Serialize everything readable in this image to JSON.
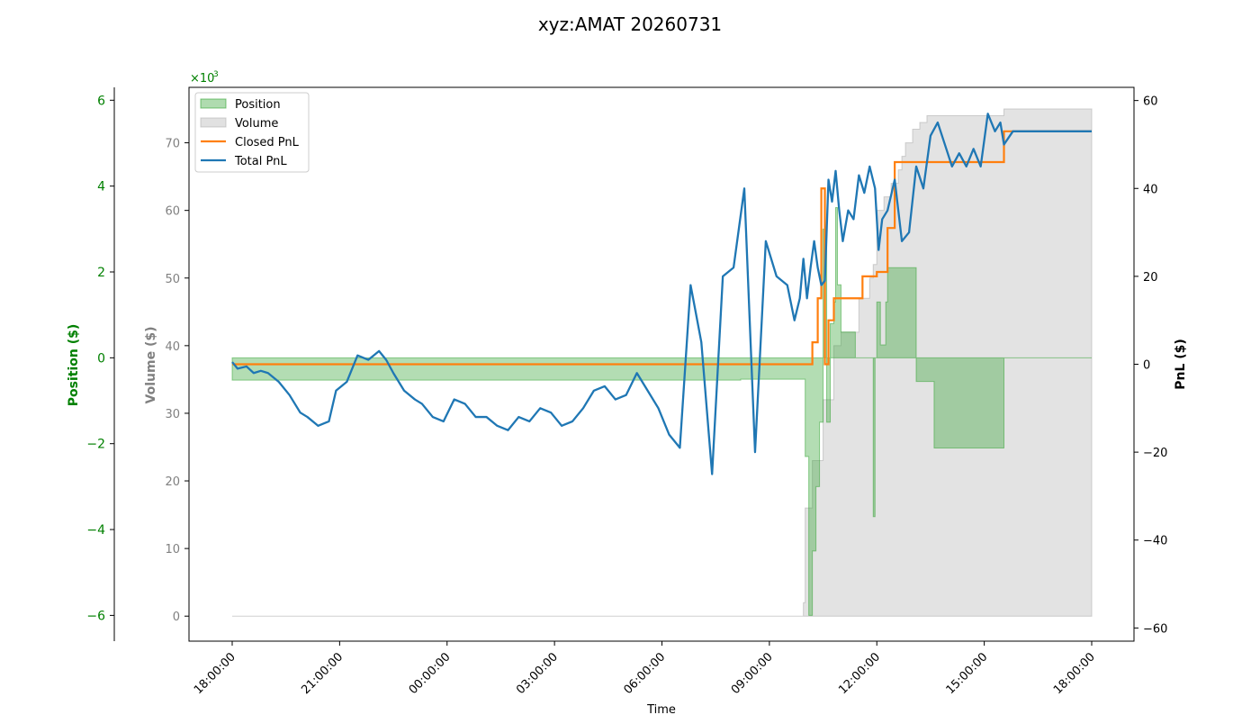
{
  "chart_data": {
    "type": "line",
    "title": "xyz:AMAT 20260731",
    "xlabel": "Time",
    "x_ticks": [
      "18:00:00",
      "21:00:00",
      "00:00:00",
      "03:00:00",
      "06:00:00",
      "09:00:00",
      "12:00:00",
      "15:00:00",
      "18:00:00"
    ],
    "axes": {
      "position": {
        "label": "Position ($)",
        "ticks": [
          "6",
          "4",
          "2",
          "0",
          "−2",
          "−4",
          "−6"
        ],
        "tick_values": [
          6,
          4,
          2,
          0,
          -2,
          -4,
          -6
        ],
        "multiplier": "×10",
        "multiplier_exp": "3",
        "ylim": [
          -6.6,
          6.3
        ],
        "color": "#008000"
      },
      "volume": {
        "label": "Volume ($)",
        "ticks": [
          "70",
          "60",
          "50",
          "40",
          "30",
          "20",
          "10",
          "0"
        ],
        "tick_values": [
          70,
          60,
          50,
          40,
          30,
          20,
          10,
          0
        ],
        "ylim": [
          -3.7,
          78.2
        ],
        "color": "#808080"
      },
      "pnl": {
        "label": "PnL ($)",
        "ticks": [
          "60",
          "40",
          "20",
          "0",
          "−20",
          "−40",
          "−60"
        ],
        "tick_values": [
          60,
          40,
          20,
          0,
          -20,
          -40,
          -60
        ],
        "ylim": [
          -63,
          63
        ],
        "color": "#000000"
      }
    },
    "legend": {
      "placement": "upper-left",
      "entries": [
        {
          "label": "Position",
          "kind": "patch",
          "color": "#2ca02c"
        },
        {
          "label": "Volume",
          "kind": "patch",
          "color": "#b0b0b0"
        },
        {
          "label": "Closed PnL",
          "kind": "line",
          "color": "#ff7f0e"
        },
        {
          "label": "Total PnL",
          "kind": "line",
          "color": "#1f77b4"
        }
      ]
    },
    "series": [
      {
        "name": "Position",
        "axis": "position",
        "kind": "area",
        "color": "#2ca02c",
        "x": [
          0,
          14.0,
          14.2,
          15.9,
          16.0,
          16.1,
          16.2,
          16.3,
          16.4,
          16.5,
          16.6,
          16.7,
          16.8,
          16.85,
          16.9,
          17.0,
          17.2,
          17.4,
          17.8,
          17.9,
          17.95,
          18.0,
          18.1,
          18.25,
          18.3,
          18.5,
          18.6,
          18.7,
          18.8,
          18.9,
          19.0,
          19.1,
          19.3,
          19.5,
          19.6,
          20.5,
          20.6,
          21.5,
          21.55,
          24
        ],
        "values": [
          -0.52,
          -0.52,
          -0.5,
          -0.5,
          -2.3,
          -6.0,
          -4.5,
          -3.0,
          -1.5,
          3.0,
          -1.5,
          0.8,
          1.3,
          3.5,
          1.7,
          0.6,
          0.6,
          0,
          0,
          -3.7,
          0,
          1.3,
          0.3,
          1.3,
          2.1,
          2.1,
          2.1,
          2.1,
          2.1,
          2.1,
          2.1,
          -0.55,
          -0.55,
          -0.55,
          -2.1,
          -2.1,
          -2.1,
          -2.1,
          0,
          0
        ]
      },
      {
        "name": "Volume",
        "axis": "volume",
        "kind": "area",
        "color": "#b0b0b0",
        "x": [
          0,
          15.9,
          15.95,
          16.0,
          16.2,
          16.5,
          16.8,
          17.0,
          17.5,
          17.8,
          17.9,
          18.0,
          18.2,
          18.4,
          18.6,
          18.7,
          18.8,
          19.0,
          19.2,
          19.4,
          20.0,
          21.0,
          21.55,
          22.0,
          23.0,
          24
        ],
        "values": [
          0,
          0,
          2,
          16,
          23,
          32,
          40,
          42,
          47,
          50,
          52,
          60,
          62,
          64,
          66,
          68,
          70,
          72,
          73,
          74,
          74,
          74,
          75,
          75,
          75,
          75
        ]
      },
      {
        "name": "Closed PnL",
        "axis": "pnl",
        "kind": "step",
        "color": "#ff7f0e",
        "x": [
          0,
          16.1,
          16.2,
          16.35,
          16.45,
          16.55,
          16.65,
          16.8,
          17.0,
          17.2,
          17.4,
          17.6,
          17.8,
          18.0,
          18.3,
          18.5,
          18.8,
          19.0,
          19.5,
          20.0,
          21.0,
          21.5,
          21.55,
          22.0,
          23.0,
          24.0
        ],
        "values": [
          0,
          0,
          5,
          15,
          40,
          0,
          10,
          15,
          15,
          15,
          15,
          20,
          20,
          21,
          31,
          46,
          46,
          46,
          46,
          46,
          46,
          46,
          53,
          53,
          53,
          53
        ]
      },
      {
        "name": "Total PnL",
        "axis": "pnl",
        "kind": "line",
        "color": "#1f77b4",
        "x": [
          0,
          0.15,
          0.4,
          0.6,
          0.8,
          1.0,
          1.3,
          1.6,
          1.9,
          2.1,
          2.4,
          2.7,
          2.9,
          3.2,
          3.5,
          3.8,
          4.1,
          4.3,
          4.5,
          4.8,
          5.1,
          5.3,
          5.6,
          5.9,
          6.2,
          6.5,
          6.8,
          7.1,
          7.4,
          7.7,
          8.0,
          8.3,
          8.6,
          8.9,
          9.2,
          9.5,
          9.8,
          10.1,
          10.4,
          10.7,
          11.0,
          11.3,
          11.6,
          11.9,
          12.2,
          12.5,
          12.8,
          13.1,
          13.4,
          13.7,
          14.0,
          14.3,
          14.6,
          14.9,
          15.2,
          15.5,
          15.7,
          15.85,
          15.95,
          16.05,
          16.15,
          16.25,
          16.35,
          16.45,
          16.55,
          16.65,
          16.75,
          16.85,
          16.95,
          17.05,
          17.2,
          17.35,
          17.5,
          17.65,
          17.8,
          17.95,
          18.05,
          18.15,
          18.3,
          18.5,
          18.7,
          18.9,
          19.1,
          19.3,
          19.5,
          19.7,
          19.9,
          20.1,
          20.3,
          20.5,
          20.7,
          20.9,
          21.1,
          21.3,
          21.45,
          21.55,
          21.8,
          22.5,
          23.2,
          24.0
        ],
        "values": [
          0.5,
          -1,
          -0.5,
          -2,
          -1.5,
          -2,
          -4,
          -7,
          -11,
          -12,
          -14,
          -13,
          -6,
          -4,
          2,
          1,
          3,
          1,
          -2,
          -6,
          -8,
          -9,
          -12,
          -13,
          -8,
          -9,
          -12,
          -12,
          -14,
          -15,
          -12,
          -13,
          -10,
          -11,
          -14,
          -13,
          -10,
          -6,
          -5,
          -8,
          -7,
          -2,
          -6,
          -10,
          -16,
          -19,
          18,
          5,
          -25,
          20,
          22,
          40,
          -20,
          28,
          20,
          18,
          10,
          15,
          24,
          15,
          22,
          28,
          22,
          18,
          19,
          42,
          37,
          44,
          35,
          28,
          35,
          33,
          43,
          39,
          45,
          40,
          26,
          33,
          35,
          42,
          28,
          30,
          45,
          40,
          52,
          55,
          50,
          45,
          48,
          45,
          49,
          45,
          57,
          53,
          55,
          50,
          53,
          53,
          53,
          53
        ]
      }
    ]
  }
}
